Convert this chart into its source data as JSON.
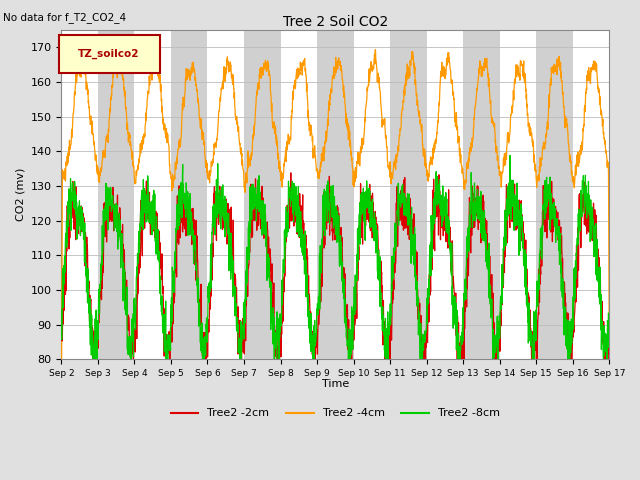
{
  "title": "Tree 2 Soil CO2",
  "subtitle": "No data for f_T2_CO2_4",
  "ylabel": "CO2 (mv)",
  "xlabel": "Time",
  "ylim": [
    80,
    175
  ],
  "yticks": [
    80,
    90,
    100,
    110,
    120,
    130,
    140,
    150,
    160,
    170
  ],
  "xtick_labels": [
    "Sep 2",
    "Sep 3",
    "Sep 4",
    "Sep 5",
    "Sep 6",
    "Sep 7",
    "Sep 8",
    "Sep 9",
    "Sep 10",
    "Sep 11",
    "Sep 12",
    "Sep 13",
    "Sep 14",
    "Sep 15",
    "Sep 16",
    "Sep 17"
  ],
  "legend_label": "TZ_soilco2",
  "series_labels": [
    "Tree2 -2cm",
    "Tree2 -4cm",
    "Tree2 -8cm"
  ],
  "series_colors": [
    "#dd0000",
    "#ff9900",
    "#00cc00"
  ],
  "bg_color": "#e0e0e0",
  "plot_bg": "#ffffff",
  "band_color": "#d0d0d0",
  "n_days": 15,
  "seed": 42
}
